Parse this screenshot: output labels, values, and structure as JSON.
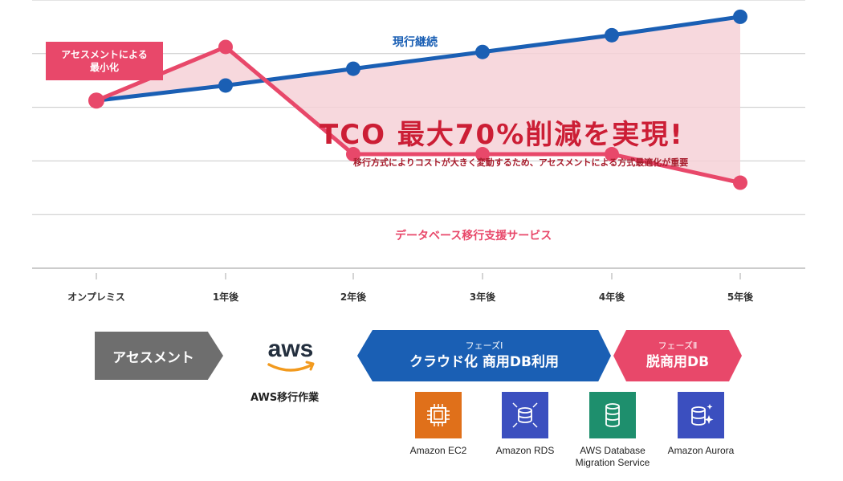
{
  "chart_data": {
    "type": "line",
    "categories": [
      "オンプレミス",
      "1年後",
      "2年後",
      "3年後",
      "4年後",
      "5年後"
    ],
    "series": [
      {
        "name": "現行継続",
        "color": "#1a5fb4",
        "values": [
          100,
          109,
          119,
          129,
          139,
          150
        ]
      },
      {
        "name": "データベース移行支援サービス",
        "color": "#e8486a",
        "values": [
          100,
          132,
          68,
          68,
          68,
          51
        ]
      }
    ],
    "ylim": [
      0,
      160
    ],
    "grid": true,
    "fill_between": {
      "color": "#f6d1d7"
    }
  },
  "callout": {
    "line1": "アセスメントによる",
    "line2": "最小化"
  },
  "headline": "TCO 最大70%削減を実現!",
  "subline": "移行方式によりコストが大きく変動するため、アセスメントによる方式最適化が重要",
  "phases": {
    "assessment": "アセスメント",
    "aws_caption": "AWS移行作業",
    "aws_logo_text": "aws",
    "phase1_small": "フェーズⅠ",
    "phase1_big": "クラウド化 商用DB利用",
    "phase2_small": "フェーズⅡ",
    "phase2_big": "脱商用DB"
  },
  "services": [
    {
      "label": "Amazon EC2",
      "icon": "ec2-icon",
      "color": "#e0701a"
    },
    {
      "label": "Amazon RDS",
      "icon": "rds-icon",
      "color": "#3b4fbf"
    },
    {
      "label": "AWS Database Migration Service",
      "icon": "dms-icon",
      "color": "#1e8f6d"
    },
    {
      "label": "Amazon Aurora",
      "icon": "aurora-icon",
      "color": "#3b4fbf"
    }
  ]
}
